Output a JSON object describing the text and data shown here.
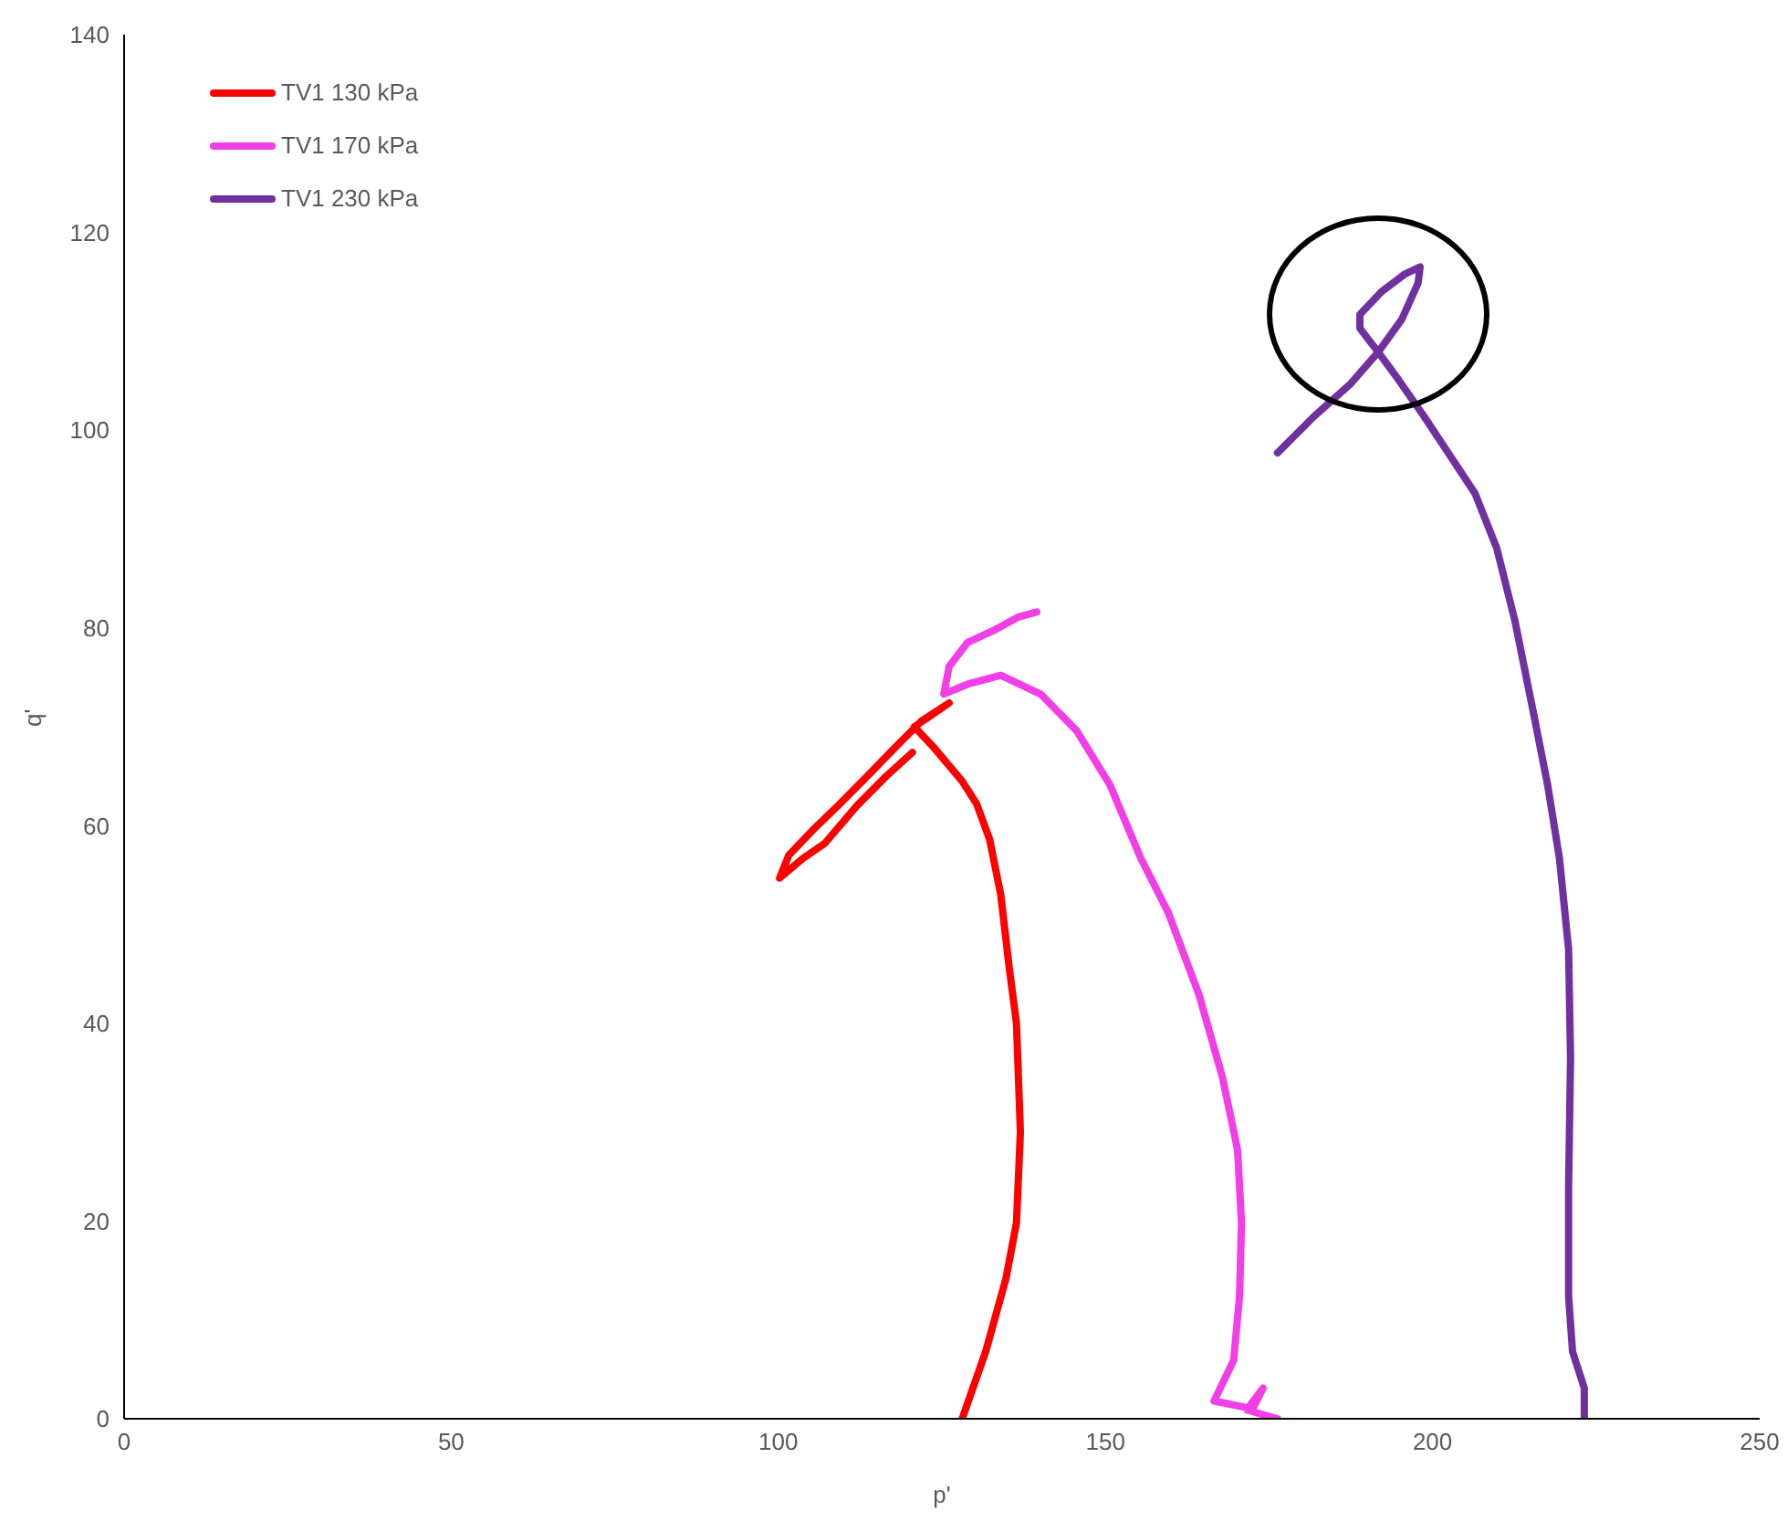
{
  "chart_data": {
    "type": "line",
    "xlabel": "p'",
    "ylabel": "q'",
    "xlim": [
      0,
      250
    ],
    "xticks": [
      0,
      50,
      100,
      150,
      200,
      250
    ],
    "ylim": [
      0,
      140
    ],
    "yticks": [
      0,
      20,
      40,
      60,
      80,
      100,
      120,
      140
    ],
    "grid": false,
    "legend": "top left",
    "marker": "none",
    "line_style": "solid",
    "series": [
      {
        "name": "TV1 130 kPa",
        "color": "#ff0000",
        "x": [
          128.1,
          131.7,
          134.8,
          136.4,
          137.0,
          136.4,
          135.3,
          134.0,
          132.3,
          130.3,
          128.1,
          123.9,
          120.8,
          126.1,
          121.9,
          117.7,
          113.6,
          109.4,
          105.2,
          101.6,
          100.2,
          103.8,
          107.1,
          112.0,
          116.5,
          120.5
        ],
        "values": [
          0,
          6.8,
          14.2,
          19.8,
          29,
          40,
          45.6,
          53,
          58.6,
          62.2,
          64.5,
          67.8,
          70,
          72.4,
          70.6,
          67.8,
          65,
          62.2,
          59.5,
          57,
          54.7,
          56.7,
          58.2,
          62,
          65,
          67.4
        ]
      },
      {
        "name": "TV1 170 kPa",
        "color": "#f23ee6",
        "x": [
          176.3,
          171.6,
          174.1,
          172.5,
          166.6,
          169.6,
          170.5,
          170.8,
          170.2,
          167.9,
          164.3,
          159.6,
          155.4,
          150.7,
          145.6,
          140.1,
          134.0,
          128.9,
          125.3,
          126.1,
          128.9,
          133.1,
          136.7,
          139.5
        ],
        "values": [
          0,
          0.9,
          3.1,
          1.0,
          1.8,
          5.9,
          12.4,
          19.8,
          27.2,
          34.5,
          42.9,
          51.2,
          56.7,
          64.1,
          69.6,
          73.3,
          75.2,
          74.3,
          73.3,
          76.1,
          78.5,
          79.8,
          81.1,
          81.6
        ]
      },
      {
        "name": "TV1 230 kPa",
        "color": "#7030a0",
        "x": [
          223.2,
          223.2,
          221.4,
          220.8,
          220.8,
          221.1,
          220.8,
          219.4,
          217.6,
          215.4,
          212.6,
          209.8,
          206.5,
          202.8,
          198.7,
          194.8,
          191.7,
          188.9,
          188.9,
          192.2,
          195.8,
          198.1,
          197.8,
          195.3,
          191.7,
          187.5,
          181.9,
          176.3
        ],
        "values": [
          0,
          3.1,
          6.8,
          12.4,
          23.5,
          36.4,
          47.5,
          56.7,
          64.1,
          71.5,
          80.7,
          88.1,
          93.6,
          97.3,
          101.4,
          105.1,
          107.9,
          110.3,
          111.7,
          114,
          115.8,
          116.5,
          114.9,
          111.2,
          107.9,
          104.7,
          101.4,
          97.7
        ]
      }
    ]
  }
}
